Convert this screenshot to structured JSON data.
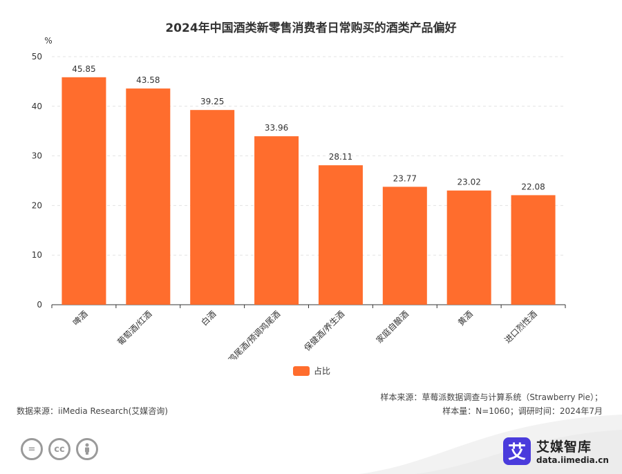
{
  "colors": {
    "bar": "#ff6d2d",
    "axis": "#333333",
    "grid": "#e3e3e3"
  },
  "chart_data": {
    "type": "bar",
    "title": "2024年中国酒类新零售消费者日常购买的酒类产品偏好",
    "ylabel": "%",
    "ylim": [
      0,
      50
    ],
    "yticks": [
      0,
      10,
      20,
      30,
      40,
      50
    ],
    "categories": [
      "啤酒",
      "葡萄酒/红酒",
      "白酒",
      "鸡尾酒/预调鸡尾酒",
      "保健酒/养生酒",
      "家庭自酿酒",
      "黄酒",
      "进口烈性酒"
    ],
    "series": [
      {
        "name": "占比",
        "values": [
          45.85,
          43.58,
          39.25,
          33.96,
          28.11,
          23.77,
          23.02,
          22.08
        ]
      }
    ],
    "value_labels": [
      "45.85",
      "43.58",
      "39.25",
      "33.96",
      "28.11",
      "23.77",
      "23.02",
      "22.08"
    ],
    "grid": true,
    "legend": "bottom-center"
  },
  "footer": {
    "source": "数据来源：iiMedia Research(艾媒咨询)",
    "sample_source": "样本来源：草莓派数据调查与计算系统（Strawberry Pie）；",
    "sample_info": "样本量：N=1060；调研时间：2024年7月"
  },
  "brand": {
    "logo_char": "艾",
    "name": "艾媒智库",
    "url": "data.iimedia.cn"
  },
  "license_icons": [
    "=",
    "cc",
    "person"
  ]
}
